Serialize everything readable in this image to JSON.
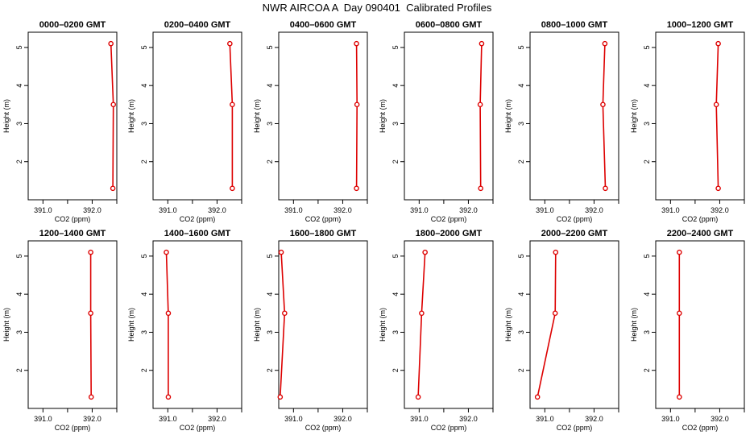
{
  "page": {
    "title": "NWR AIRCOA A  Day 090401  Calibrated Profiles"
  },
  "colors": {
    "series": "#dd0000",
    "axis": "#000000"
  },
  "chart_data": [
    {
      "type": "line",
      "title": "0000–0200 GMT",
      "xlabel": "CO2 (ppm)",
      "ylabel": "Height (m)",
      "xlim": [
        390.7,
        392.5
      ],
      "ylim": [
        1.0,
        5.4
      ],
      "xticks": [
        391.0,
        391.5,
        392.0,
        392.5
      ],
      "xticklabels": [
        "391.0",
        "",
        "392.0",
        ""
      ],
      "yticks": [
        2,
        3,
        4,
        5
      ],
      "series": [
        {
          "x": [
            392.38,
            392.43,
            392.42
          ],
          "y": [
            5.1,
            3.5,
            1.3
          ]
        }
      ]
    },
    {
      "type": "line",
      "title": "0200–0400 GMT",
      "xlabel": "CO2 (ppm)",
      "ylabel": "Height (m)",
      "xlim": [
        390.7,
        392.5
      ],
      "ylim": [
        1.0,
        5.4
      ],
      "xticks": [
        391.0,
        391.5,
        392.0,
        392.5
      ],
      "xticklabels": [
        "391.0",
        "",
        "392.0",
        ""
      ],
      "yticks": [
        2,
        3,
        4,
        5
      ],
      "series": [
        {
          "x": [
            392.26,
            392.31,
            392.31
          ],
          "y": [
            5.1,
            3.5,
            1.3
          ]
        }
      ]
    },
    {
      "type": "line",
      "title": "0400–0600 GMT",
      "xlabel": "CO2 (ppm)",
      "ylabel": "Height (m)",
      "xlim": [
        390.7,
        392.5
      ],
      "ylim": [
        1.0,
        5.4
      ],
      "xticks": [
        391.0,
        391.5,
        392.0,
        392.5
      ],
      "xticklabels": [
        "391.0",
        "",
        "392.0",
        ""
      ],
      "yticks": [
        2,
        3,
        4,
        5
      ],
      "series": [
        {
          "x": [
            392.28,
            392.29,
            392.28
          ],
          "y": [
            5.1,
            3.5,
            1.3
          ]
        }
      ]
    },
    {
      "type": "line",
      "title": "0600–0800 GMT",
      "xlabel": "CO2 (ppm)",
      "ylabel": "Height (m)",
      "xlim": [
        390.7,
        392.5
      ],
      "ylim": [
        1.0,
        5.4
      ],
      "xticks": [
        391.0,
        391.5,
        392.0,
        392.5
      ],
      "xticklabels": [
        "391.0",
        "",
        "392.0",
        ""
      ],
      "yticks": [
        2,
        3,
        4,
        5
      ],
      "series": [
        {
          "x": [
            392.27,
            392.24,
            392.25
          ],
          "y": [
            5.1,
            3.5,
            1.3
          ]
        }
      ]
    },
    {
      "type": "line",
      "title": "0800–1000 GMT",
      "xlabel": "CO2 (ppm)",
      "ylabel": "Height (m)",
      "xlim": [
        390.7,
        392.5
      ],
      "ylim": [
        1.0,
        5.4
      ],
      "xticks": [
        391.0,
        391.5,
        392.0,
        392.5
      ],
      "xticklabels": [
        "391.0",
        "",
        "392.0",
        ""
      ],
      "yticks": [
        2,
        3,
        4,
        5
      ],
      "series": [
        {
          "x": [
            392.22,
            392.18,
            392.23
          ],
          "y": [
            5.1,
            3.5,
            1.3
          ]
        }
      ]
    },
    {
      "type": "line",
      "title": "1000–1200 GMT",
      "xlabel": "CO2 (ppm)",
      "ylabel": "Height (m)",
      "xlim": [
        390.7,
        392.5
      ],
      "ylim": [
        1.0,
        5.4
      ],
      "xticks": [
        391.0,
        391.5,
        392.0,
        392.5
      ],
      "xticklabels": [
        "391.0",
        "",
        "392.0",
        ""
      ],
      "yticks": [
        2,
        3,
        4,
        5
      ],
      "series": [
        {
          "x": [
            391.97,
            391.93,
            391.97
          ],
          "y": [
            5.1,
            3.5,
            1.3
          ]
        }
      ]
    },
    {
      "type": "line",
      "title": "1200–1400 GMT",
      "xlabel": "CO2 (ppm)",
      "ylabel": "Height (m)",
      "xlim": [
        390.7,
        392.5
      ],
      "ylim": [
        1.0,
        5.4
      ],
      "xticks": [
        391.0,
        391.5,
        392.0,
        392.5
      ],
      "xticklabels": [
        "391.0",
        "",
        "392.0",
        ""
      ],
      "yticks": [
        2,
        3,
        4,
        5
      ],
      "series": [
        {
          "x": [
            391.97,
            391.97,
            391.98
          ],
          "y": [
            5.1,
            3.5,
            1.3
          ]
        }
      ]
    },
    {
      "type": "line",
      "title": "1400–1600 GMT",
      "xlabel": "CO2 (ppm)",
      "ylabel": "Height (m)",
      "xlim": [
        390.7,
        392.5
      ],
      "ylim": [
        1.0,
        5.4
      ],
      "xticks": [
        391.0,
        391.5,
        392.0,
        392.5
      ],
      "xticklabels": [
        "391.0",
        "",
        "392.0",
        ""
      ],
      "yticks": [
        2,
        3,
        4,
        5
      ],
      "series": [
        {
          "x": [
            390.97,
            391.01,
            391.01
          ],
          "y": [
            5.1,
            3.5,
            1.3
          ]
        }
      ]
    },
    {
      "type": "line",
      "title": "1600–1800 GMT",
      "xlabel": "CO2 (ppm)",
      "ylabel": "Height (m)",
      "xlim": [
        390.7,
        392.5
      ],
      "ylim": [
        1.0,
        5.4
      ],
      "xticks": [
        391.0,
        391.5,
        392.0,
        392.5
      ],
      "xticklabels": [
        "391.0",
        "",
        "392.0",
        ""
      ],
      "yticks": [
        2,
        3,
        4,
        5
      ],
      "series": [
        {
          "x": [
            390.75,
            390.82,
            390.73
          ],
          "y": [
            5.1,
            3.5,
            1.3
          ]
        }
      ]
    },
    {
      "type": "line",
      "title": "1800–2000 GMT",
      "xlabel": "CO2 (ppm)",
      "ylabel": "Height (m)",
      "xlim": [
        390.7,
        392.5
      ],
      "ylim": [
        1.0,
        5.4
      ],
      "xticks": [
        391.0,
        391.5,
        392.0,
        392.5
      ],
      "xticklabels": [
        "391.0",
        "",
        "392.0",
        ""
      ],
      "yticks": [
        2,
        3,
        4,
        5
      ],
      "series": [
        {
          "x": [
            391.12,
            391.05,
            390.98
          ],
          "y": [
            5.1,
            3.5,
            1.3
          ]
        }
      ]
    },
    {
      "type": "line",
      "title": "2000–2200 GMT",
      "xlabel": "CO2 (ppm)",
      "ylabel": "Height (m)",
      "xlim": [
        390.7,
        392.5
      ],
      "ylim": [
        1.0,
        5.4
      ],
      "xticks": [
        391.0,
        391.5,
        392.0,
        392.5
      ],
      "xticklabels": [
        "391.0",
        "",
        "392.0",
        ""
      ],
      "yticks": [
        2,
        3,
        4,
        5
      ],
      "series": [
        {
          "x": [
            391.22,
            391.21,
            390.85
          ],
          "y": [
            5.1,
            3.5,
            1.3
          ]
        }
      ]
    },
    {
      "type": "line",
      "title": "2200–2400 GMT",
      "xlabel": "CO2 (ppm)",
      "ylabel": "Height (m)",
      "xlim": [
        390.7,
        392.5
      ],
      "ylim": [
        1.0,
        5.4
      ],
      "xticks": [
        391.0,
        391.5,
        392.0,
        392.5
      ],
      "xticklabels": [
        "391.0",
        "",
        "392.0",
        ""
      ],
      "yticks": [
        2,
        3,
        4,
        5
      ],
      "series": [
        {
          "x": [
            391.18,
            391.18,
            391.18
          ],
          "y": [
            5.1,
            3.5,
            1.3
          ]
        }
      ]
    }
  ]
}
